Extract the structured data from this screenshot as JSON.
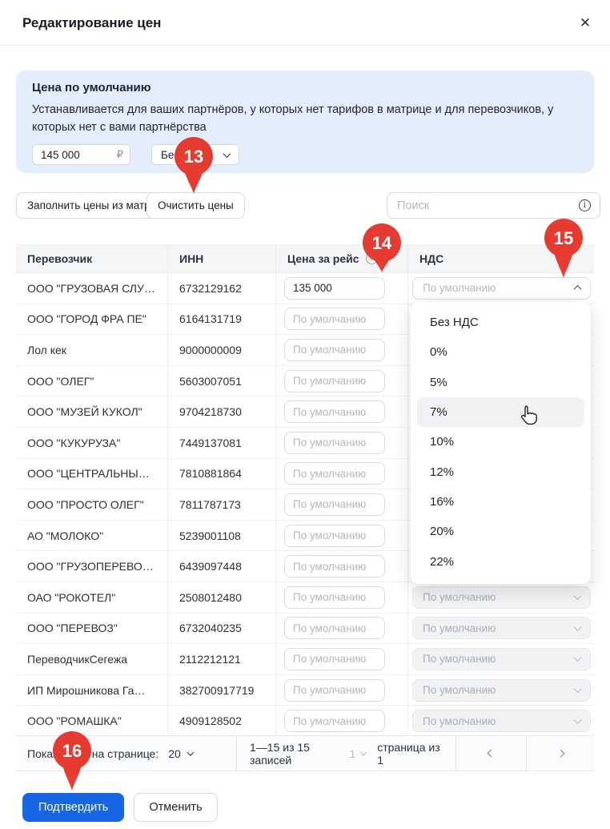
{
  "modal": {
    "title": "Редактирование цен",
    "close_icon": "✕"
  },
  "default_price_panel": {
    "title": "Цена по умолчанию",
    "description": "Устанавливается для ваших партнёров, у которых нет тарифов в матрице и для перевозчиков, у которых нет с вами партнёрства",
    "price_value": "145 000",
    "currency": "₽",
    "vat_value": "Бе..."
  },
  "toolbar": {
    "fill_button": "Заполнить цены из матриц",
    "clear_button": "Очистить цены",
    "search_placeholder": "Поиск",
    "info_icon": "i"
  },
  "table": {
    "headers": {
      "carrier": "Перевозчик",
      "inn": "ИНН",
      "price": "Цена за рейс",
      "vat": "НДС"
    },
    "price_placeholder": "По умолчанию",
    "vat_placeholder": "По умолчанию",
    "rows": [
      {
        "name": "ООО \"ГРУЗОВАЯ СЛУ…",
        "inn": "6732129162",
        "price": "135 000"
      },
      {
        "name": "ООО \"ГОРОД ФРА ПЕ\"",
        "inn": "6164131719",
        "price": null
      },
      {
        "name": "Лол кек",
        "inn": "9000000009",
        "price": null
      },
      {
        "name": "ООО \"ОЛЕГ\"",
        "inn": "5603007051",
        "price": null
      },
      {
        "name": "ООО \"МУЗЕЙ КУКОЛ\"",
        "inn": "9704218730",
        "price": null
      },
      {
        "name": "ООО \"КУКУРУЗА\"",
        "inn": "7449137081",
        "price": null
      },
      {
        "name": "ООО \"ЦЕНТРАЛЬНЫ…",
        "inn": "7810881864",
        "price": null
      },
      {
        "name": "ООО \"ПРОСТО ОЛЕГ\"",
        "inn": "7811787173",
        "price": null
      },
      {
        "name": "АО \"МОЛОКО\"",
        "inn": "5239001108",
        "price": null
      },
      {
        "name": "ООО \"ГРУЗОПЕРЕВО…",
        "inn": "6439097448",
        "price": null
      },
      {
        "name": "ОАО \"РОКОТЕЛ\"",
        "inn": "2508012480",
        "price": null
      },
      {
        "name": "ООО \"ПЕРЕВОЗ\"",
        "inn": "6732040235",
        "price": null
      },
      {
        "name": "ПереводчикСегежа",
        "inn": "2112212121",
        "price": null
      },
      {
        "name": "ИП Мирошникова Га…",
        "inn": "382700917719",
        "price": null
      },
      {
        "name": "ООО \"РОМАШКА\"",
        "inn": "4909128502",
        "price": null
      }
    ]
  },
  "vat_dropdown": {
    "options": [
      "Без НДС",
      "0%",
      "5%",
      "7%",
      "10%",
      "12%",
      "16%",
      "20%",
      "22%"
    ],
    "hovered_option": "7%"
  },
  "pagination": {
    "per_page_label": "Показывать на странице:",
    "per_page_value": "20",
    "records_text": "1—15 из 15 записей",
    "page_value": "1",
    "page_label": "страница из 1"
  },
  "footer": {
    "confirm": "Подтвердить",
    "cancel": "Отменить"
  },
  "annotations": {
    "markers": [
      {
        "number": "13"
      },
      {
        "number": "14"
      },
      {
        "number": "15"
      },
      {
        "number": "16"
      }
    ]
  },
  "colors": {
    "accent_red": "#e63b30",
    "primary_blue": "#1767e5",
    "panel_blue": "#e4edfb"
  }
}
